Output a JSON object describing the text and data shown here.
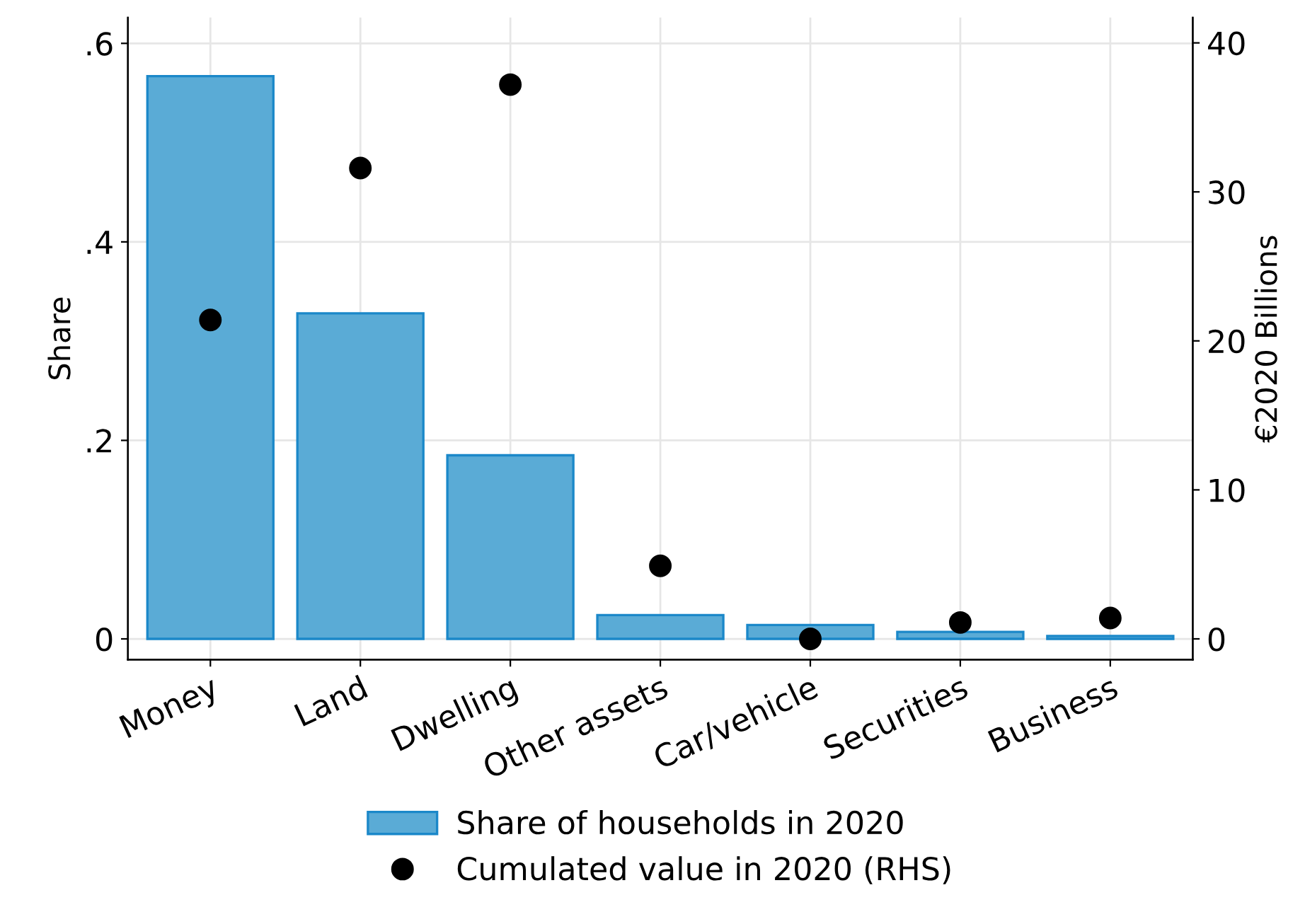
{
  "chart_data": {
    "type": "bar",
    "categories": [
      "Money",
      "Land",
      "Dwelling",
      "Other assets",
      "Car/vehicle",
      "Securities",
      "Business"
    ],
    "series": [
      {
        "name": "Share of households in 2020",
        "color": "#5aabd6",
        "values": [
          0.567,
          0.328,
          0.185,
          0.024,
          0.014,
          0.007,
          0.003
        ]
      },
      {
        "name": "Cumulated value in 2020 (RHS)",
        "type": "scatter",
        "axis": "y2",
        "color": "#000000",
        "values": [
          21.4,
          31.6,
          37.2,
          4.9,
          0,
          1.1,
          1.4
        ]
      }
    ],
    "ylabel": "Share",
    "y2label": "€2020 Billions",
    "ylim": [
      -0.021,
      0.626
    ],
    "yticks": [
      0,
      {
        "value": 0.2,
        "label": ".2"
      },
      {
        "value": 0.4,
        "label": ".4"
      },
      {
        "value": 0.6,
        "label": ".6"
      }
    ],
    "y2lim": [
      -1.4,
      41.7
    ],
    "y2ticks": [
      0,
      10,
      20,
      30,
      40
    ],
    "grid": true,
    "legend": "bottom",
    "marker": "circle"
  }
}
